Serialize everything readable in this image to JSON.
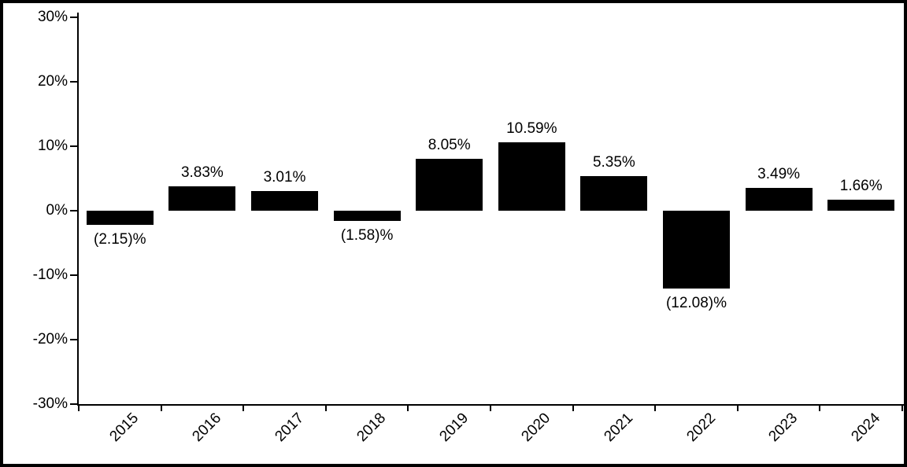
{
  "chart_data": {
    "type": "bar",
    "title": "",
    "categories": [
      "2015",
      "2016",
      "2017",
      "2018",
      "2019",
      "2020",
      "2021",
      "2022",
      "2023",
      "2024"
    ],
    "values": [
      -2.15,
      3.83,
      3.01,
      -1.58,
      8.05,
      10.59,
      5.35,
      -12.08,
      3.49,
      1.66
    ],
    "bar_labels": [
      "(2.15)%",
      "3.83%",
      "3.01%",
      "(1.58)%",
      "8.05%",
      "10.59%",
      "5.35%",
      "(12.08)%",
      "3.49%",
      "1.66%"
    ],
    "ylim": [
      -30,
      30
    ],
    "ytick_values": [
      30,
      20,
      10,
      0,
      -10,
      -20,
      -30
    ],
    "ytick_labels": [
      "30%",
      "20%",
      "10%",
      "0%",
      "-10%",
      "-20%",
      "-30%"
    ],
    "bar_color": "#000000",
    "axis_color": "#000000",
    "background_color": "#ffffff",
    "grid": false,
    "legend": "none"
  }
}
